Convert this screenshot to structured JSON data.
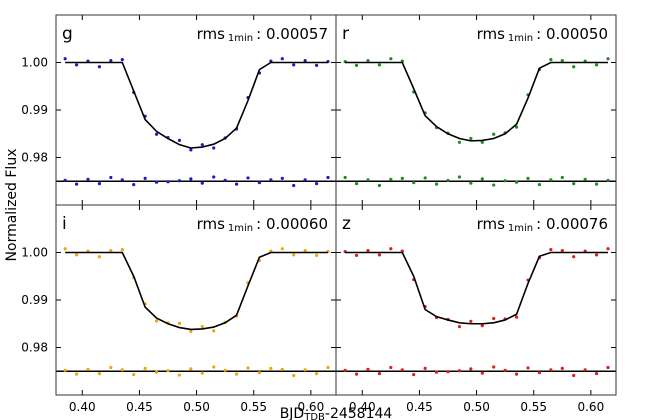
{
  "figure": {
    "ylabel": "Normalized Flux",
    "xlabel": {
      "text": "BJD",
      "subscript": "TDB",
      "suffix": "-2458144"
    }
  },
  "chart_data": [
    {
      "type": "scatter",
      "title": "g",
      "color": "#1c1cc4",
      "annotation": {
        "label": "rms",
        "subscript": "1min",
        "text": ": 0.00057"
      },
      "x": [
        0.385,
        0.395,
        0.405,
        0.415,
        0.425,
        0.435,
        0.445,
        0.455,
        0.465,
        0.475,
        0.485,
        0.495,
        0.505,
        0.515,
        0.525,
        0.535,
        0.545,
        0.555,
        0.565,
        0.575,
        0.585,
        0.595,
        0.605,
        0.615
      ],
      "series": [
        {
          "style": "points",
          "color": "#1c1cc4",
          "values": [
            1.0008,
            0.9995,
            1.0003,
            0.9991,
            1.0004,
            1.0006,
            0.9937,
            0.9887,
            0.9849,
            0.9842,
            0.9836,
            0.9816,
            0.9827,
            0.982,
            0.9841,
            0.986,
            0.9926,
            0.9978,
            1.0003,
            1.0008,
            0.9995,
            1.0004,
            0.9994,
            1.0002
          ]
        },
        {
          "style": "points",
          "color": "#1c1cc4",
          "values": [
            0.9752,
            0.9744,
            0.9754,
            0.9745,
            0.9758,
            0.9753,
            0.9743,
            0.9756,
            0.9748,
            0.9749,
            0.9751,
            0.9755,
            0.9746,
            0.9759,
            0.9752,
            0.9744,
            0.9757,
            0.9747,
            0.9753,
            0.9756,
            0.9741,
            0.9753,
            0.9745,
            0.9758
          ]
        },
        {
          "style": "line",
          "color": "#000000",
          "values": [
            1,
            1,
            1,
            1,
            1,
            1,
            0.994,
            0.988,
            0.9855,
            0.984,
            0.9827,
            0.982,
            0.9822,
            0.9828,
            0.984,
            0.9862,
            0.992,
            0.9985,
            1,
            1,
            1,
            1,
            1,
            1
          ]
        }
      ],
      "hline": 0.975,
      "hline_color": "#000000",
      "xlim": [
        0.377,
        0.622
      ],
      "ylim": [
        0.97,
        1.01
      ],
      "xticks": [
        0.4,
        0.45,
        0.5,
        0.55,
        0.6
      ],
      "yticks": [
        {
          "value": 0.98,
          "label": "0.98"
        },
        {
          "value": 0.99,
          "label": "0.99"
        },
        {
          "value": 1,
          "label": "1.00"
        }
      ]
    },
    {
      "type": "scatter",
      "title": "r",
      "color": "#1e8c1e",
      "annotation": {
        "label": "rms",
        "subscript": "1min",
        "text": ": 0.00050"
      },
      "x": [
        0.385,
        0.395,
        0.405,
        0.415,
        0.425,
        0.435,
        0.445,
        0.455,
        0.465,
        0.475,
        0.485,
        0.495,
        0.505,
        0.515,
        0.525,
        0.535,
        0.545,
        0.555,
        0.565,
        0.575,
        0.585,
        0.595,
        0.605,
        0.615
      ],
      "series": [
        {
          "style": "points",
          "color": "#1e8c1e",
          "values": [
            1.0002,
            0.9994,
            1.0004,
            0.9995,
            1.0008,
            1.0003,
            0.9938,
            0.9894,
            0.9863,
            0.9851,
            0.9832,
            0.984,
            0.9832,
            0.9849,
            0.9852,
            0.9864,
            0.9932,
            0.9985,
            1.0006,
            1.0004,
            0.9991,
            1.0003,
            0.9995,
            1.0008
          ]
        },
        {
          "style": "points",
          "color": "#1e8c1e",
          "values": [
            0.9758,
            0.9745,
            0.9753,
            0.9741,
            0.9754,
            0.9756,
            0.9747,
            0.9757,
            0.9744,
            0.9752,
            0.9759,
            0.9746,
            0.9755,
            0.9742,
            0.9751,
            0.9748,
            0.9756,
            0.9743,
            0.9753,
            0.9758,
            0.9745,
            0.9754,
            0.9744,
            0.9752
          ]
        },
        {
          "style": "line",
          "color": "#000000",
          "values": [
            1,
            1,
            1,
            1,
            1,
            1,
            0.9945,
            0.9888,
            0.9865,
            0.985,
            0.984,
            0.9835,
            0.9836,
            0.984,
            0.985,
            0.987,
            0.9925,
            0.9988,
            1,
            1,
            1,
            1,
            1,
            1
          ]
        }
      ],
      "hline": 0.975,
      "hline_color": "#000000",
      "xlim": [
        0.377,
        0.622
      ],
      "ylim": [
        0.97,
        1.01
      ],
      "xticks": [
        0.4,
        0.45,
        0.5,
        0.55,
        0.6
      ],
      "yticks": [
        0.98,
        0.99,
        1
      ]
    },
    {
      "type": "scatter",
      "title": "i",
      "color": "#f0a30a",
      "annotation": {
        "label": "rms",
        "subscript": "1min",
        "text": ": 0.00060"
      },
      "x": [
        0.385,
        0.395,
        0.405,
        0.415,
        0.425,
        0.435,
        0.445,
        0.455,
        0.465,
        0.475,
        0.485,
        0.495,
        0.505,
        0.515,
        0.525,
        0.535,
        0.545,
        0.555,
        0.565,
        0.575,
        0.585,
        0.595,
        0.605,
        0.615
      ],
      "series": [
        {
          "style": "points",
          "color": "#f0a30a",
          "values": [
            1.0008,
            0.9995,
            1.0003,
            0.9991,
            1.0004,
            1.0006,
            0.9947,
            0.9892,
            0.9856,
            0.9852,
            0.9851,
            0.9834,
            0.9844,
            0.9835,
            0.9853,
            0.9866,
            0.9936,
            0.9983,
            1.0003,
            1.0008,
            0.9995,
            1.0004,
            0.9994,
            1.0002
          ]
        },
        {
          "style": "points",
          "color": "#f0a30a",
          "values": [
            0.9752,
            0.9744,
            0.9754,
            0.9745,
            0.9758,
            0.9753,
            0.9743,
            0.9756,
            0.9748,
            0.9751,
            0.9742,
            0.9755,
            0.9746,
            0.9759,
            0.9752,
            0.9744,
            0.9757,
            0.9747,
            0.9756,
            0.9754,
            0.9741,
            0.9753,
            0.9745,
            0.9758
          ]
        },
        {
          "style": "line",
          "color": "#000000",
          "values": [
            1,
            1,
            1,
            1,
            1,
            1,
            0.995,
            0.9885,
            0.9862,
            0.985,
            0.9842,
            0.9838,
            0.9839,
            0.9843,
            0.9852,
            0.9868,
            0.993,
            0.999,
            1,
            1,
            1,
            1,
            1,
            1
          ]
        }
      ],
      "hline": 0.975,
      "hline_color": "#000000",
      "xlim": [
        0.377,
        0.622
      ],
      "ylim": [
        0.97,
        1.01
      ],
      "xticks": [
        {
          "value": 0.4,
          "label": "0.40"
        },
        {
          "value": 0.45,
          "label": "0.45"
        },
        {
          "value": 0.5,
          "label": "0.50"
        },
        {
          "value": 0.55,
          "label": "0.55"
        },
        {
          "value": 0.6,
          "label": "0.60"
        }
      ],
      "yticks": [
        {
          "value": 0.98,
          "label": "0.98"
        },
        {
          "value": 0.99,
          "label": "0.99"
        },
        {
          "value": 1,
          "label": "1.00"
        }
      ]
    },
    {
      "type": "scatter",
      "title": "z",
      "color": "#d8201e",
      "annotation": {
        "label": "rms",
        "subscript": "1min",
        "text": ": 0.00076"
      },
      "x": [
        0.385,
        0.395,
        0.405,
        0.415,
        0.425,
        0.435,
        0.445,
        0.455,
        0.465,
        0.475,
        0.485,
        0.495,
        0.505,
        0.515,
        0.525,
        0.535,
        0.545,
        0.555,
        0.565,
        0.575,
        0.585,
        0.595,
        0.605,
        0.615
      ],
      "series": [
        {
          "style": "points",
          "color": "#d8201e",
          "values": [
            1.0002,
            0.9994,
            1.0004,
            0.9995,
            1.0008,
            1.0003,
            0.9943,
            0.9886,
            0.9863,
            0.9859,
            0.9844,
            0.9855,
            0.9846,
            0.9861,
            0.986,
            0.9864,
            0.9942,
            0.9989,
            1.0006,
            1.0004,
            0.9991,
            1.0003,
            0.9995,
            1.0008
          ]
        },
        {
          "style": "points",
          "color": "#d8201e",
          "values": [
            0.9752,
            0.9744,
            0.9754,
            0.9745,
            0.9758,
            0.9753,
            0.9743,
            0.9756,
            0.9748,
            0.9749,
            0.9751,
            0.9755,
            0.9746,
            0.9759,
            0.9752,
            0.9744,
            0.9757,
            0.9747,
            0.9753,
            0.9756,
            0.9741,
            0.9753,
            0.9745,
            0.9758
          ]
        },
        {
          "style": "line",
          "color": "#000000",
          "values": [
            1,
            1,
            1,
            1,
            1,
            1,
            0.995,
            0.988,
            0.9865,
            0.9858,
            0.9852,
            0.985,
            0.985,
            0.9852,
            0.9858,
            0.987,
            0.9935,
            0.9992,
            1,
            1,
            1,
            1,
            1,
            1
          ]
        }
      ],
      "hline": 0.975,
      "hline_color": "#000000",
      "xlim": [
        0.377,
        0.622
      ],
      "ylim": [
        0.97,
        1.01
      ],
      "xticks": [
        {
          "value": 0.4,
          "label": "0.40"
        },
        {
          "value": 0.45,
          "label": "0.45"
        },
        {
          "value": 0.5,
          "label": "0.50"
        },
        {
          "value": 0.55,
          "label": "0.55"
        },
        {
          "value": 0.6,
          "label": "0.60"
        }
      ],
      "yticks": [
        0.98,
        0.99,
        1
      ]
    }
  ]
}
